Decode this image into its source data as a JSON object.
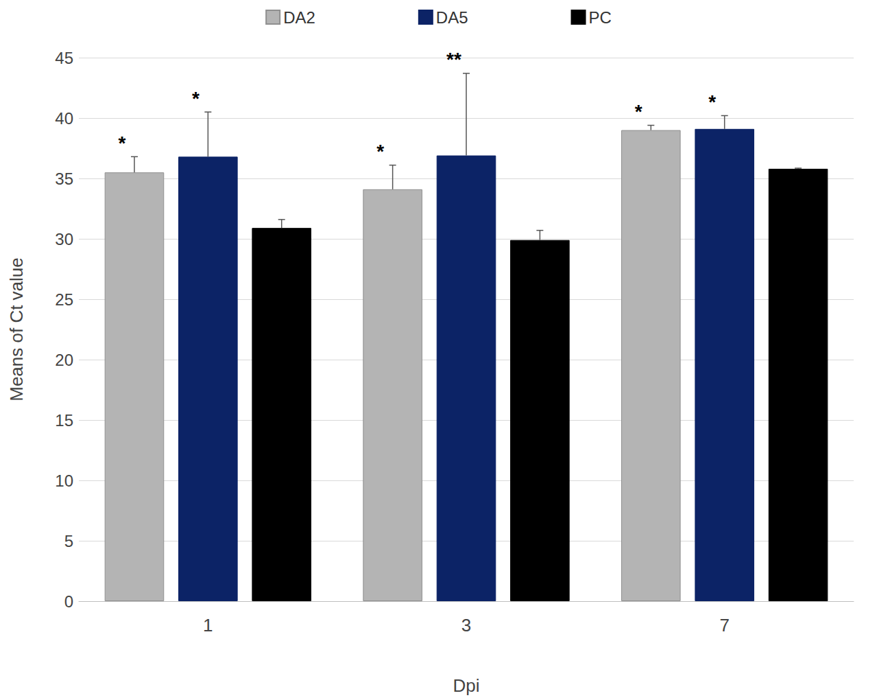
{
  "chart_data": {
    "type": "bar",
    "categories": [
      "1",
      "3",
      "7"
    ],
    "x_label": "Dpi",
    "y_label": "Means of Ct value",
    "series": [
      {
        "name": "DA2",
        "color": "#b4b4b4",
        "values": [
          35.5,
          34.1,
          39.0
        ],
        "errors": [
          1.3,
          2.0,
          0.4
        ],
        "significance": [
          "*",
          "*",
          "*"
        ]
      },
      {
        "name": "DA5",
        "color": "#0c2366",
        "values": [
          36.8,
          36.9,
          39.1
        ],
        "errors": [
          3.7,
          6.8,
          1.1
        ],
        "significance": [
          "*",
          "**",
          "*"
        ]
      },
      {
        "name": "PC",
        "color": "#000000",
        "values": [
          30.9,
          29.9,
          35.8
        ],
        "errors": [
          0.7,
          0.8,
          0.05
        ],
        "significance": [
          null,
          null,
          null
        ]
      }
    ],
    "ylim": [
      0,
      45
    ],
    "yticks": [
      0,
      5,
      10,
      15,
      20,
      25,
      30,
      35,
      40,
      45
    ],
    "grid": true,
    "legend": "top"
  }
}
